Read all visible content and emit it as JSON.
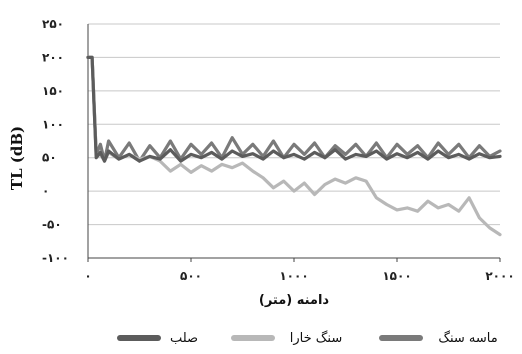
{
  "chart_data": {
    "type": "line",
    "title": "",
    "xlabel": "دامنه (متر)",
    "ylabel": "TL (dB)",
    "xlim": [
      0,
      2000
    ],
    "ylim": [
      -100,
      250
    ],
    "xticks": [
      {
        "value": 0,
        "label": "٠"
      },
      {
        "value": 500,
        "label": "۵٠٠"
      },
      {
        "value": 1000,
        "label": "١٠٠٠"
      },
      {
        "value": 1500,
        "label": "١۵٠٠"
      },
      {
        "value": 2000,
        "label": "٢٠٠٠"
      }
    ],
    "yticks": [
      {
        "value": 250,
        "label": "٢۵٠"
      },
      {
        "value": 200,
        "label": "٢٠٠"
      },
      {
        "value": 150,
        "label": "١۵٠"
      },
      {
        "value": 100,
        "label": "١٠٠"
      },
      {
        "value": 50,
        "label": "۵٠"
      },
      {
        "value": 0,
        "label": "٠"
      },
      {
        "value": -50,
        "label": "-۵٠"
      },
      {
        "value": -100,
        "label": "-١٠٠"
      }
    ],
    "grid": "horizontal",
    "legend_position": "bottom",
    "series": [
      {
        "name": "ماسه سنگ",
        "color": "#7a7a7a",
        "x": [
          0,
          20,
          40,
          60,
          80,
          100,
          150,
          200,
          250,
          300,
          350,
          400,
          450,
          500,
          550,
          600,
          650,
          700,
          750,
          800,
          850,
          900,
          950,
          1000,
          1050,
          1100,
          1150,
          1200,
          1250,
          1300,
          1350,
          1400,
          1450,
          1500,
          1550,
          1600,
          1650,
          1700,
          1750,
          1800,
          1850,
          1900,
          1950,
          2000
        ],
        "y": [
          200,
          200,
          55,
          70,
          45,
          75,
          50,
          72,
          45,
          68,
          50,
          75,
          48,
          70,
          55,
          72,
          50,
          80,
          55,
          70,
          52,
          75,
          50,
          70,
          55,
          72,
          50,
          68,
          55,
          70,
          52,
          72,
          50,
          70,
          55,
          68,
          50,
          72,
          55,
          70,
          50,
          68,
          52,
          60
        ]
      },
      {
        "name": "سنگ خارا",
        "color": "#b8b8b8",
        "x": [
          0,
          20,
          40,
          60,
          80,
          100,
          150,
          200,
          250,
          300,
          350,
          400,
          450,
          500,
          550,
          600,
          650,
          700,
          750,
          800,
          850,
          900,
          950,
          1000,
          1050,
          1100,
          1150,
          1200,
          1250,
          1300,
          1350,
          1400,
          1450,
          1500,
          1550,
          1600,
          1650,
          1700,
          1750,
          1800,
          1850,
          1900,
          1950,
          2000
        ],
        "y": [
          200,
          200,
          55,
          55,
          45,
          58,
          48,
          55,
          48,
          52,
          45,
          30,
          40,
          28,
          38,
          30,
          40,
          35,
          42,
          30,
          20,
          5,
          15,
          0,
          12,
          -5,
          10,
          18,
          12,
          20,
          15,
          -10,
          -20,
          -28,
          -25,
          -30,
          -15,
          -25,
          -20,
          -30,
          -10,
          -40,
          -55,
          -65
        ]
      },
      {
        "name": "صلب",
        "color": "#5c5c5c",
        "x": [
          0,
          20,
          40,
          60,
          80,
          100,
          150,
          200,
          250,
          300,
          350,
          400,
          450,
          500,
          550,
          600,
          650,
          700,
          750,
          800,
          850,
          900,
          950,
          1000,
          1050,
          1100,
          1150,
          1200,
          1250,
          1300,
          1350,
          1400,
          1450,
          1500,
          1550,
          1600,
          1650,
          1700,
          1750,
          1800,
          1850,
          1900,
          1950,
          2000
        ],
        "y": [
          200,
          200,
          50,
          58,
          45,
          60,
          48,
          55,
          45,
          52,
          48,
          62,
          45,
          55,
          50,
          58,
          48,
          60,
          52,
          56,
          48,
          60,
          50,
          55,
          48,
          58,
          50,
          62,
          48,
          55,
          52,
          60,
          48,
          56,
          50,
          58,
          48,
          60,
          50,
          55,
          48,
          56,
          50,
          52
        ]
      }
    ]
  }
}
